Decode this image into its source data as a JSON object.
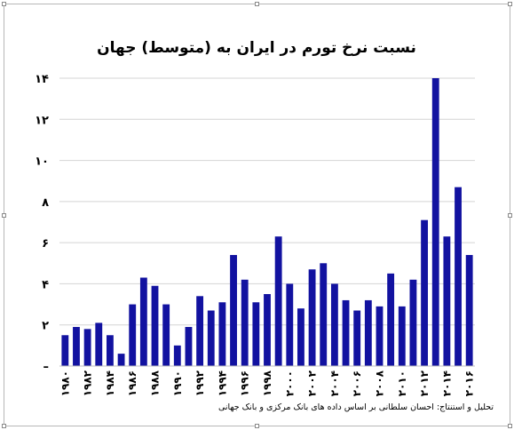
{
  "chart_data": {
    "type": "bar",
    "title": "نسبت نرخ تورم در ایران به (متوسط) جهان",
    "footnote": "تحلیل و استنتاج: احسان سلطانی بر اساس داده های بانک مرکزی و بانک جهانی",
    "bar_color": "#1212a0",
    "grid": true,
    "legend": "none",
    "ylim": [
      0,
      14
    ],
    "yticks": [
      {
        "value": 0,
        "label": "–"
      },
      {
        "value": 2,
        "label": "۲"
      },
      {
        "value": 4,
        "label": "۴"
      },
      {
        "value": 6,
        "label": "۶"
      },
      {
        "value": 8,
        "label": "۸"
      },
      {
        "value": 10,
        "label": "۱۰"
      },
      {
        "value": 12,
        "label": "۱۲"
      },
      {
        "value": 14,
        "label": "۱۴"
      }
    ],
    "categories": [
      "1980",
      "1981",
      "1982",
      "1983",
      "1984",
      "1985",
      "1986",
      "1987",
      "1988",
      "1989",
      "1990",
      "1991",
      "1992",
      "1993",
      "1994",
      "1995",
      "1996",
      "1997",
      "1998",
      "1999",
      "2000",
      "2001",
      "2002",
      "2003",
      "2004",
      "2005",
      "2006",
      "2007",
      "2008",
      "2009",
      "2010",
      "2011",
      "2012",
      "2013",
      "2014",
      "2015",
      "2016"
    ],
    "xtick_labels": [
      {
        "index": 0,
        "label": "۱۹۸۰"
      },
      {
        "index": 2,
        "label": "۱۹۸۲"
      },
      {
        "index": 4,
        "label": "۱۹۸۴"
      },
      {
        "index": 6,
        "label": "۱۹۸۶"
      },
      {
        "index": 8,
        "label": "۱۹۸۸"
      },
      {
        "index": 10,
        "label": "۱۹۹۰"
      },
      {
        "index": 12,
        "label": "۱۹۹۲"
      },
      {
        "index": 14,
        "label": "۱۹۹۴"
      },
      {
        "index": 16,
        "label": "۱۹۹۶"
      },
      {
        "index": 18,
        "label": "۱۹۹۸"
      },
      {
        "index": 20,
        "label": "۲۰۰۰"
      },
      {
        "index": 22,
        "label": "۲۰۰۲"
      },
      {
        "index": 24,
        "label": "۲۰۰۴"
      },
      {
        "index": 26,
        "label": "۲۰۰۶"
      },
      {
        "index": 28,
        "label": "۲۰۰۸"
      },
      {
        "index": 30,
        "label": "۲۰۱۰"
      },
      {
        "index": 32,
        "label": "۲۰۱۲"
      },
      {
        "index": 34,
        "label": "۲۰۱۴"
      },
      {
        "index": 36,
        "label": "۲۰۱۶"
      }
    ],
    "values": [
      1.5,
      1.9,
      1.8,
      2.1,
      1.5,
      0.6,
      3.0,
      4.3,
      3.9,
      3.0,
      1.0,
      1.9,
      3.4,
      2.7,
      3.1,
      5.4,
      4.2,
      3.1,
      3.5,
      6.3,
      4.0,
      2.8,
      4.7,
      5.0,
      4.0,
      3.2,
      2.7,
      3.2,
      2.9,
      4.5,
      2.9,
      4.2,
      7.1,
      14.0,
      6.3,
      8.7,
      5.4
    ]
  }
}
